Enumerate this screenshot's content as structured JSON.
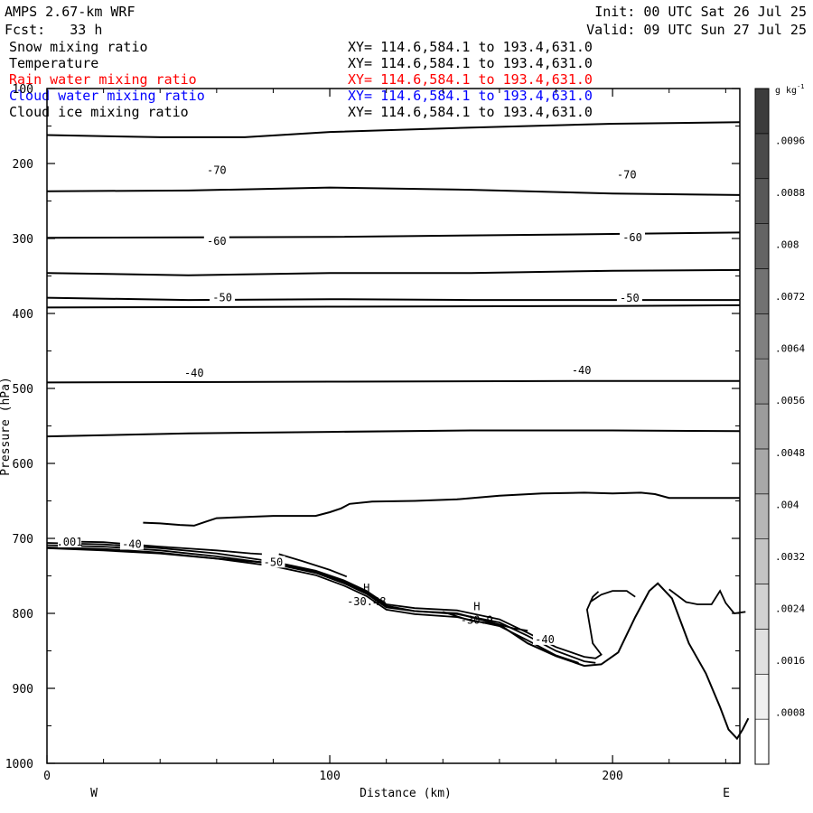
{
  "header": {
    "model": "AMPS 2.67-km WRF",
    "fcst": "Fcst:   33 h",
    "init": "Init: 00 UTC Sat 26 Jul 25",
    "valid": "Valid: 09 UTC Sun 27 Jul 25"
  },
  "fields": [
    {
      "name": "Snow mixing ratio",
      "xy": "XY= 114.6,584.1 to 193.4,631.0",
      "color": "#000000"
    },
    {
      "name": "Temperature",
      "xy": "XY= 114.6,584.1 to 193.4,631.0",
      "color": "#000000"
    },
    {
      "name": "Rain water mixing ratio",
      "xy": "XY= 114.6,584.1 to 193.4,631.0",
      "color": "#ff0000"
    },
    {
      "name": "Cloud water mixing ratio",
      "xy": "XY= 114.6,584.1 to 193.4,631.0",
      "color": "#0000ff"
    },
    {
      "name": "Cloud ice mixing ratio",
      "xy": "XY= 114.6,584.1 to 193.4,631.0",
      "color": "#000000"
    }
  ],
  "chart_data": {
    "type": "line",
    "xlabel": "Distance (km)",
    "ylabel": "Pressure (hPa)",
    "xlim": [
      0,
      245
    ],
    "ylim": [
      100,
      1000
    ],
    "y_reversed": true,
    "x_ticks": [
      0,
      100,
      200
    ],
    "y_ticks": [
      100,
      200,
      300,
      400,
      500,
      600,
      700,
      800,
      900,
      1000
    ],
    "x_ends": {
      "left": "W",
      "right": "E"
    },
    "isotherms": [
      {
        "label": "",
        "points": [
          [
            0,
            162
          ],
          [
            40,
            165
          ],
          [
            70,
            165
          ],
          [
            100,
            158
          ],
          [
            150,
            152
          ],
          [
            200,
            147
          ],
          [
            245,
            145
          ]
        ]
      },
      {
        "label": "-70",
        "label_at": [
          [
            60,
            210
          ],
          [
            205,
            216
          ]
        ],
        "points": [
          [
            0,
            237
          ],
          [
            50,
            236
          ],
          [
            100,
            232
          ],
          [
            150,
            235
          ],
          [
            200,
            240
          ],
          [
            245,
            242
          ]
        ]
      },
      {
        "label": "",
        "points": [
          [
            0,
            299
          ],
          [
            100,
            298
          ],
          [
            200,
            294
          ],
          [
            245,
            292
          ]
        ]
      },
      {
        "label": "-60",
        "label_at": [
          [
            60,
            305
          ],
          [
            207,
            300
          ]
        ],
        "points": [
          [
            0,
            346
          ],
          [
            50,
            349
          ],
          [
            100,
            346
          ],
          [
            150,
            346
          ],
          [
            200,
            343
          ],
          [
            245,
            342
          ]
        ]
      },
      {
        "label": "",
        "points": [
          [
            0,
            392
          ],
          [
            100,
            391
          ],
          [
            200,
            390
          ],
          [
            245,
            389
          ]
        ]
      },
      {
        "label": "-50",
        "label_at": [
          [
            62,
            380
          ],
          [
            206,
            381
          ]
        ],
        "points": [
          [
            0,
            379
          ],
          [
            50,
            382
          ],
          [
            100,
            381
          ],
          [
            150,
            382
          ],
          [
            200,
            382
          ],
          [
            245,
            382
          ]
        ]
      },
      {
        "label": "",
        "points": [
          [
            0,
            492
          ],
          [
            100,
            491
          ],
          [
            200,
            490
          ],
          [
            245,
            490
          ]
        ]
      },
      {
        "label": "-40",
        "label_at": [
          [
            52,
            481
          ],
          [
            189,
            477
          ]
        ],
        "points": [
          [
            0,
            564
          ],
          [
            50,
            560
          ],
          [
            100,
            558
          ],
          [
            150,
            556
          ],
          [
            200,
            556
          ],
          [
            245,
            557
          ]
        ]
      }
    ],
    "low_contour": {
      "points": [
        [
          34,
          679
        ],
        [
          40,
          680
        ],
        [
          47,
          682
        ],
        [
          52,
          683
        ],
        [
          56,
          678
        ],
        [
          60,
          673
        ],
        [
          80,
          670
        ],
        [
          95,
          670
        ],
        [
          100,
          665
        ],
        [
          104,
          660
        ],
        [
          107,
          654
        ],
        [
          115,
          651
        ],
        [
          130,
          650
        ],
        [
          145,
          648
        ],
        [
          160,
          643
        ],
        [
          175,
          640
        ],
        [
          190,
          639
        ],
        [
          200,
          640
        ],
        [
          210,
          639
        ],
        [
          215,
          641
        ],
        [
          220,
          646
        ],
        [
          233,
          646
        ],
        [
          245,
          646
        ]
      ]
    },
    "terrain": {
      "points": [
        [
          0,
          713
        ],
        [
          20,
          716
        ],
        [
          40,
          720
        ],
        [
          60,
          727
        ],
        [
          80,
          733
        ],
        [
          95,
          745
        ],
        [
          105,
          758
        ],
        [
          113,
          772
        ],
        [
          120,
          790
        ],
        [
          130,
          797
        ],
        [
          145,
          800
        ],
        [
          160,
          815
        ],
        [
          170,
          840
        ],
        [
          180,
          857
        ],
        [
          190,
          870
        ],
        [
          196,
          868
        ],
        [
          202,
          852
        ],
        [
          208,
          805
        ],
        [
          213,
          770
        ],
        [
          216,
          760
        ],
        [
          221,
          780
        ],
        [
          227,
          840
        ],
        [
          233,
          880
        ],
        [
          238,
          925
        ],
        [
          241,
          955
        ],
        [
          244,
          967
        ],
        [
          246,
          955
        ],
        [
          248,
          940
        ]
      ]
    },
    "snow_contours": [
      {
        "points": [
          [
            0,
            706
          ],
          [
            20,
            708
          ],
          [
            40,
            713
          ],
          [
            60,
            720
          ],
          [
            80,
            731
          ],
          [
            95,
            743
          ],
          [
            105,
            756
          ],
          [
            113,
            770
          ],
          [
            120,
            788
          ],
          [
            130,
            793
          ],
          [
            145,
            796
          ],
          [
            160,
            808
          ],
          [
            170,
            826
          ],
          [
            180,
            845
          ],
          [
            190,
            858
          ],
          [
            194,
            860
          ],
          [
            196,
            855
          ],
          [
            193,
            840
          ],
          [
            192,
            818
          ],
          [
            191,
            795
          ],
          [
            193,
            778
          ],
          [
            195,
            771
          ]
        ]
      },
      {
        "points": [
          [
            0,
            709
          ],
          [
            20,
            711
          ],
          [
            40,
            716
          ],
          [
            60,
            724
          ],
          [
            80,
            734
          ],
          [
            95,
            746
          ],
          [
            105,
            760
          ],
          [
            113,
            774
          ],
          [
            120,
            792
          ],
          [
            130,
            797
          ],
          [
            145,
            801
          ],
          [
            160,
            812
          ],
          [
            170,
            830
          ],
          [
            180,
            850
          ],
          [
            190,
            864
          ],
          [
            194,
            866
          ]
        ]
      },
      {
        "points": [
          [
            0,
            712
          ],
          [
            20,
            714
          ],
          [
            40,
            719
          ],
          [
            60,
            727
          ],
          [
            80,
            737
          ],
          [
            95,
            749
          ],
          [
            105,
            763
          ],
          [
            113,
            777
          ],
          [
            120,
            795
          ],
          [
            130,
            801
          ],
          [
            145,
            805
          ],
          [
            160,
            817
          ],
          [
            170,
            836
          ],
          [
            180,
            856
          ],
          [
            188,
            866
          ]
        ]
      },
      {
        "points": [
          [
            5,
            704
          ],
          [
            20,
            705
          ],
          [
            40,
            711
          ],
          [
            60,
            716
          ],
          [
            72,
            720
          ],
          [
            76,
            721
          ]
        ]
      },
      {
        "points": [
          [
            82,
            721
          ],
          [
            90,
            730
          ],
          [
            100,
            742
          ],
          [
            106,
            751
          ]
        ]
      },
      {
        "points": [
          [
            140,
            798
          ],
          [
            150,
            810
          ],
          [
            160,
            815
          ],
          [
            165,
            820
          ],
          [
            170,
            823
          ]
        ]
      },
      {
        "points": [
          [
            192,
            785
          ],
          [
            196,
            775
          ],
          [
            200,
            770
          ],
          [
            205,
            770
          ],
          [
            208,
            778
          ]
        ]
      },
      {
        "points": [
          [
            220,
            768
          ],
          [
            226,
            785
          ],
          [
            230,
            788
          ],
          [
            235,
            788
          ],
          [
            238,
            770
          ],
          [
            240,
            786
          ],
          [
            243,
            800
          ],
          [
            247,
            798
          ]
        ]
      }
    ],
    "labels": [
      {
        "text": "-40",
        "x": 30,
        "y": 709
      },
      {
        "text": "-50",
        "x": 80,
        "y": 733
      },
      {
        "text": "-40",
        "x": 176,
        "y": 836
      },
      {
        "text": ".001",
        "x": 8,
        "y": 706
      }
    ],
    "highs": [
      {
        "text": "H",
        "x": 113,
        "y": 771,
        "value": "-30.48"
      },
      {
        "text": "H",
        "x": 152,
        "y": 796,
        "value": "-30.9"
      }
    ],
    "colorbar": {
      "unit": "g kg",
      "unit_sup": "-1",
      "ticks": [
        ".0096",
        ".0088",
        ".008",
        ".0072",
        ".0064",
        ".0056",
        ".0048",
        ".004",
        ".0032",
        ".0024",
        ".0016",
        ".0008"
      ],
      "colors": [
        "#ffffff",
        "#f0f0f0",
        "#e0e0e0",
        "#d2d2d2",
        "#c4c4c4",
        "#b6b6b6",
        "#a8a8a8",
        "#9c9c9c",
        "#8e8e8e",
        "#808080",
        "#727272",
        "#646464",
        "#585858",
        "#4a4a4a",
        "#3c3c3c"
      ]
    }
  }
}
